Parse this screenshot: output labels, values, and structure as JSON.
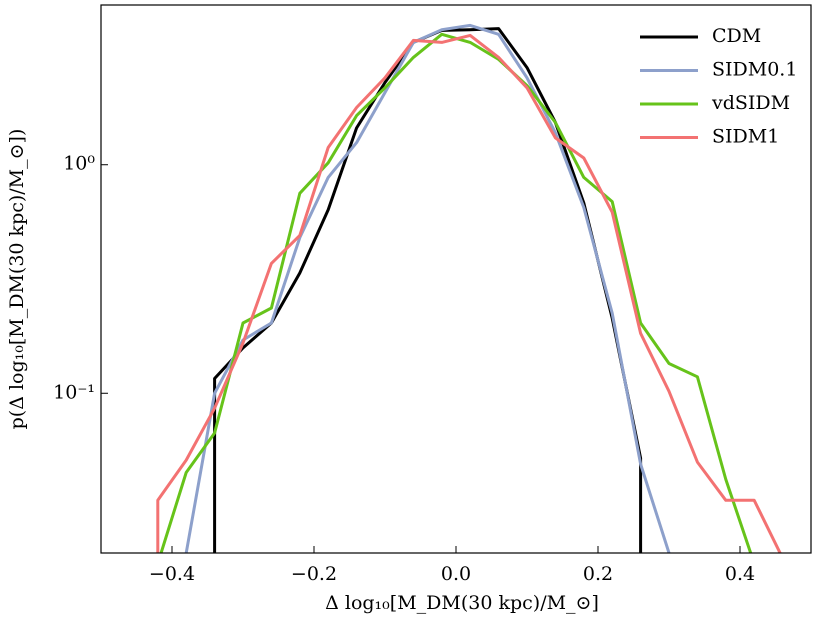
{
  "chart_data": {
    "type": "line",
    "xlabel": "Δ log₁₀[M_DM(30 kpc)/M_⊙]",
    "ylabel": "p(Δ log₁₀[M_DM(30 kpc)/M_⊙])",
    "x": [
      -0.46,
      -0.42,
      -0.38,
      -0.34,
      -0.3,
      -0.26,
      -0.22,
      -0.18,
      -0.14,
      -0.1,
      -0.06,
      -0.02,
      0.02,
      0.06,
      0.1,
      0.14,
      0.18,
      0.22,
      0.26,
      0.3,
      0.34,
      0.38,
      0.42,
      0.46
    ],
    "series": [
      {
        "name": "CDM",
        "color": "#000000",
        "values": [
          null,
          null,
          0,
          0.116,
          0.158,
          0.203,
          0.336,
          0.635,
          1.45,
          2.29,
          3.43,
          3.87,
          3.9,
          3.94,
          2.66,
          1.53,
          0.68,
          0.213,
          0.052,
          0,
          null,
          null,
          null,
          null
        ]
      },
      {
        "name": "SIDM0.1",
        "color": "#8da0cb",
        "values": [
          null,
          null,
          0.02,
          0.1,
          0.171,
          0.203,
          0.48,
          0.88,
          1.25,
          2.07,
          3.43,
          3.9,
          4.07,
          3.72,
          2.4,
          1.38,
          0.65,
          0.224,
          0.049,
          0.02,
          null,
          null,
          null,
          null
        ]
      },
      {
        "name": "vdSIDM",
        "color": "#66c31a",
        "values": [
          null,
          0.018,
          0.045,
          0.067,
          0.203,
          0.236,
          0.75,
          1.02,
          1.64,
          2.17,
          2.95,
          3.72,
          3.43,
          2.89,
          2.22,
          1.53,
          0.88,
          0.69,
          0.203,
          0.135,
          0.118,
          0.042,
          0.018,
          null
        ]
      },
      {
        "name": "SIDM1",
        "color": "#f37272",
        "values": [
          0,
          0.034,
          0.051,
          0.086,
          0.166,
          0.37,
          0.49,
          1.19,
          1.78,
          2.4,
          3.5,
          3.43,
          3.68,
          2.95,
          2.17,
          1.31,
          1.07,
          0.62,
          0.183,
          0.102,
          0.05,
          0.034,
          0.034,
          0.019
        ]
      }
    ],
    "xlim": [
      -0.5,
      0.5
    ],
    "xticks": [
      {
        "value": -0.4,
        "label": "−0.4"
      },
      {
        "value": -0.2,
        "label": "−0.2"
      },
      {
        "value": 0,
        "label": "0.0"
      },
      {
        "value": 0.2,
        "label": "0.2"
      },
      {
        "value": 0.4,
        "label": "0.4"
      }
    ],
    "ylim": [
      0.02,
      5
    ],
    "yticks": [
      {
        "value": 0.1,
        "label": "10⁻¹"
      },
      {
        "value": 1,
        "label": "10⁰"
      }
    ],
    "yscale": "log",
    "grid": false,
    "legend": "upper right"
  }
}
